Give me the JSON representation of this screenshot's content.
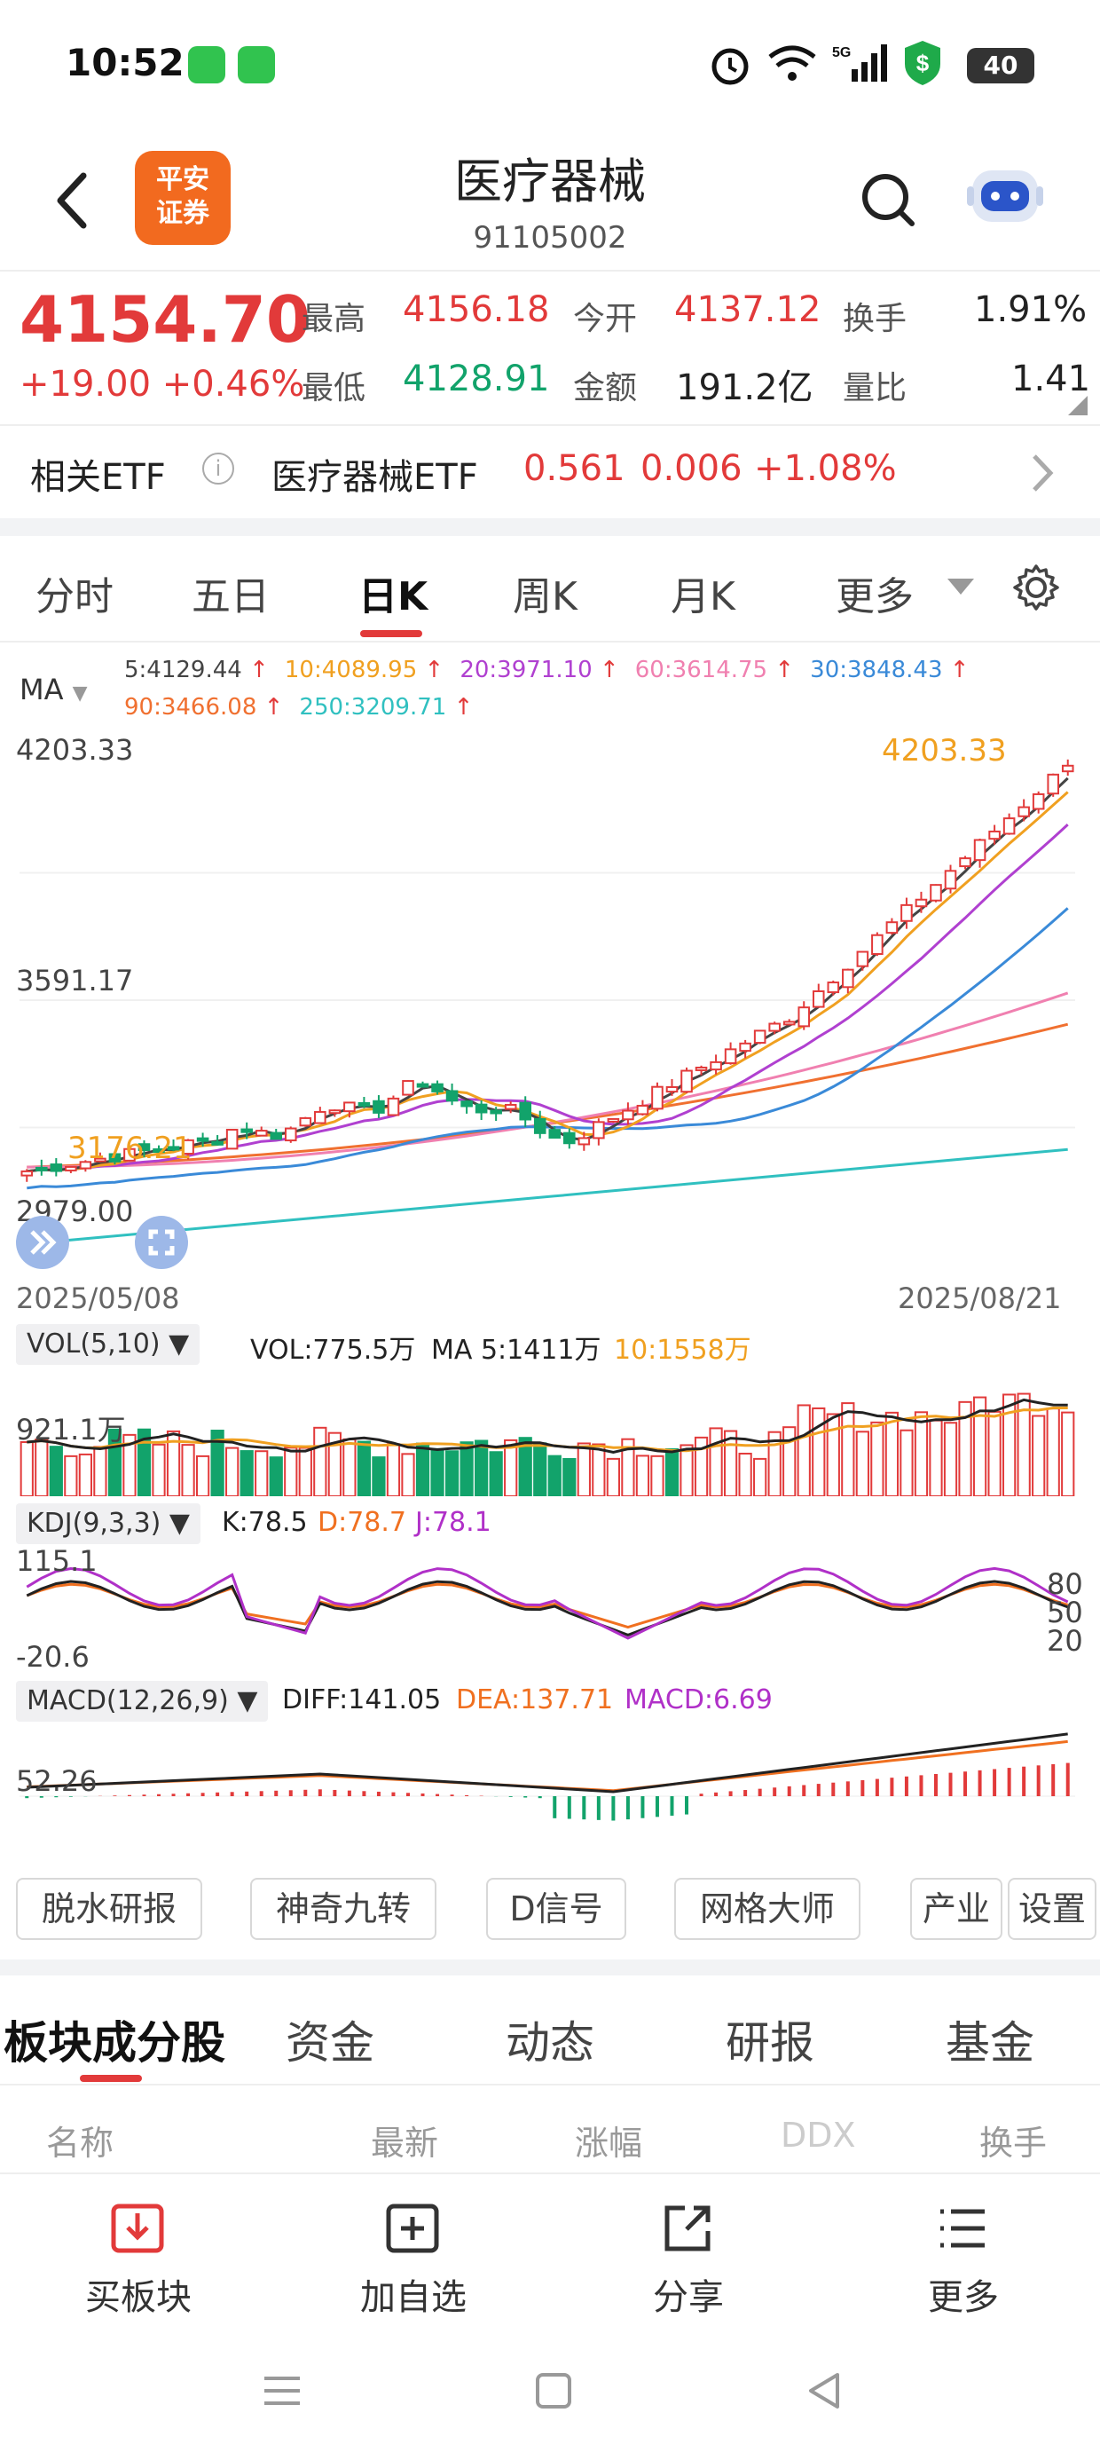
{
  "status": {
    "time": "10:52",
    "battery": "40",
    "network": "5G"
  },
  "header": {
    "title": "医疗器械",
    "code": "91105002",
    "logo_text": "平安证券"
  },
  "quote": {
    "price": "4154.70",
    "change": "+19.00",
    "change_pct": "+0.46%",
    "high_label": "最高",
    "high": "4156.18",
    "open_label": "今开",
    "open": "4137.12",
    "turnover_label": "换手",
    "turnover": "1.91%",
    "low_label": "最低",
    "low": "4128.91",
    "amount_label": "金额",
    "amount": "191.2亿",
    "vol_ratio_label": "量比",
    "vol_ratio": "1.41"
  },
  "etf": {
    "label": "相关ETF",
    "name": "医疗器械ETF",
    "price": "0.561",
    "change": "0.006",
    "pct": "+1.08%"
  },
  "period_tabs": [
    "分时",
    "五日",
    "日K",
    "周K",
    "月K",
    "更多"
  ],
  "ma": {
    "label": "MA",
    "items": [
      {
        "text": "5:4129.44",
        "color": "#444444"
      },
      {
        "text": "10:4089.95",
        "color": "#f0a020"
      },
      {
        "text": "20:3971.10",
        "color": "#b040d0"
      },
      {
        "text": "60:3614.75",
        "color": "#f080b0"
      },
      {
        "text": "30:3848.43",
        "color": "#3a8ad8"
      },
      {
        "text": "90:3466.08",
        "color": "#f07030"
      },
      {
        "text": "250:3209.71",
        "color": "#30c0c0"
      }
    ],
    "arrow": "↑"
  },
  "chart": {
    "y_top": "4203.33",
    "y_mid": "3591.17",
    "y_bottom": "2979.00",
    "max_label": "4203.33",
    "min_label": "3176.21",
    "date_start": "2025/05/08",
    "date_end": "2025/08/21"
  },
  "vol": {
    "pill": "VOL(5,10)",
    "text1": "VOL:775.5万",
    "text2": "MA 5:1411万",
    "text3": "10:1558万",
    "axis": "921.1万"
  },
  "kdj": {
    "pill": "KDJ(9,3,3)",
    "k": "K:78.5",
    "d": "D:78.7",
    "j": "J:78.1",
    "top": "115.1",
    "bottom": "-20.6",
    "levels": [
      "80",
      "50",
      "20"
    ]
  },
  "macd": {
    "pill": "MACD(12,26,9)",
    "diff": "DIFF:141.05",
    "dea": "DEA:137.71",
    "macd": "MACD:6.69",
    "axis": "52.26"
  },
  "tools": [
    "脱水研报",
    "神奇九转",
    "D信号",
    "网格大师",
    "产业",
    "设置"
  ],
  "sub_tabs": [
    "板块成分股",
    "资金",
    "动态",
    "研报",
    "基金"
  ],
  "columns": [
    "名称",
    "最新",
    "涨幅",
    "DDX",
    "换手"
  ],
  "bottom_bar": [
    "买板块",
    "加自选",
    "分享",
    "更多"
  ]
}
